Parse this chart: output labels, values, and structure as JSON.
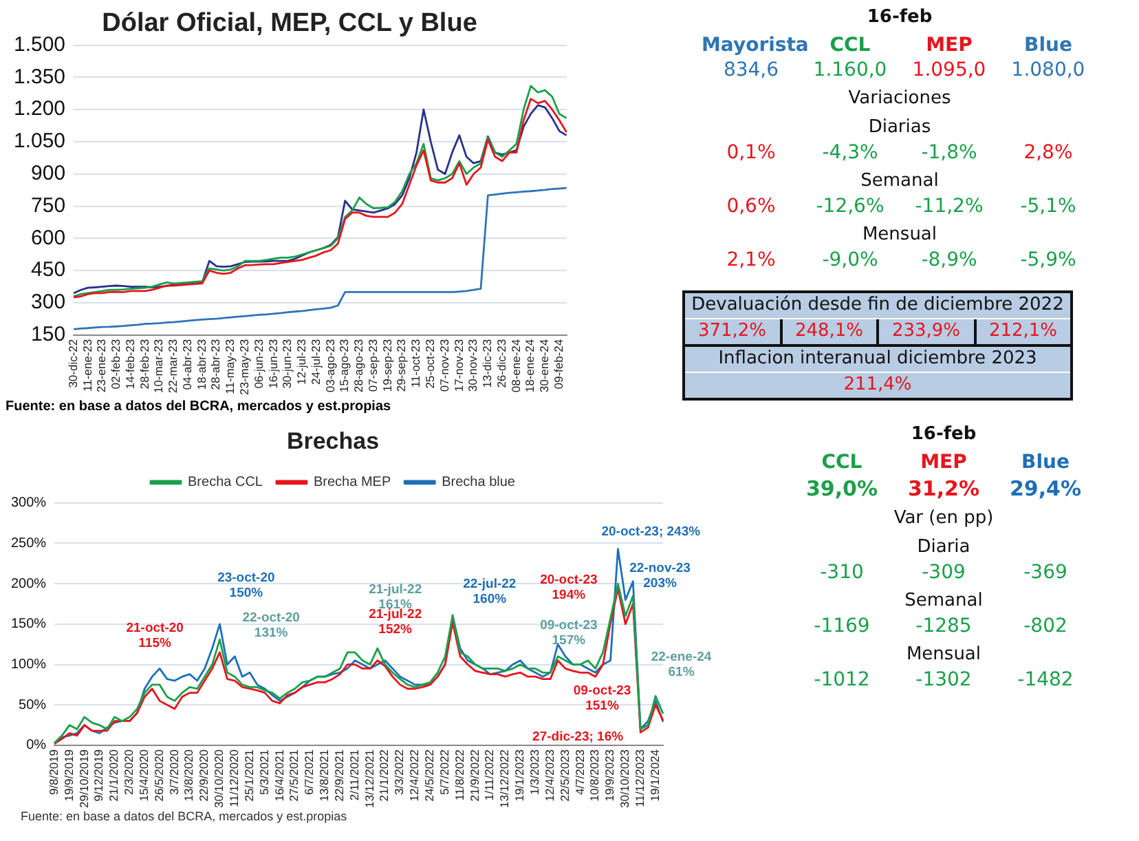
{
  "chart_data": [
    {
      "type": "line",
      "title": "Dólar Oficial, MEP, CCL y Blue",
      "categories": [
        "30-dic-22",
        null,
        "11-ene-23",
        null,
        "23-ene-23",
        null,
        "02-feb-23",
        null,
        "14-feb-23",
        null,
        "28-feb-23",
        null,
        "10-mar-23",
        null,
        "22-mar-23",
        null,
        "04-abr-23",
        null,
        "18-abr-23",
        null,
        "28-abr-23",
        null,
        "11-may-23",
        null,
        "23-may-23",
        null,
        "06-jun-23",
        null,
        "16-jun-23",
        null,
        "30-jun-23",
        null,
        "12-jul-23",
        null,
        "24-jul-23",
        null,
        "03-ago-23",
        null,
        "15-ago-23",
        null,
        "28-ago-23",
        null,
        "07-sep-23",
        null,
        "19-sep-23",
        null,
        "29-sep-23",
        null,
        "11-oct-23",
        null,
        "25-oct-23",
        null,
        "07-nov-23",
        null,
        "17-nov-23",
        null,
        "30-nov-23",
        null,
        "13-dic-23",
        null,
        "26-dic-23",
        null,
        "08-ene-24",
        null,
        "18-ene-24",
        null,
        "30-ene-24",
        null,
        "09-feb-24",
        null
      ],
      "series": [
        {
          "color": "#2e75b6",
          "values": [
            177,
            180,
            182,
            185,
            187,
            188,
            190,
            192,
            195,
            198,
            202,
            203,
            205,
            208,
            210,
            213,
            216,
            219,
            222,
            224,
            226,
            229,
            232,
            235,
            238,
            241,
            244,
            246,
            249,
            252,
            256,
            259,
            262,
            266,
            270,
            273,
            277,
            287,
            350,
            350,
            350,
            350,
            350,
            350,
            350,
            350,
            350,
            350,
            350,
            350,
            350,
            350,
            350,
            350,
            352,
            355,
            360,
            365,
            800,
            804,
            808,
            812,
            815,
            818,
            820,
            823,
            826,
            830,
            832,
            835
          ]
        },
        {
          "color": "#e8141c",
          "values": [
            325,
            330,
            340,
            345,
            345,
            350,
            350,
            350,
            355,
            355,
            355,
            360,
            370,
            380,
            380,
            382,
            385,
            388,
            390,
            450,
            440,
            435,
            440,
            460,
            475,
            476,
            478,
            480,
            480,
            485,
            490,
            495,
            500,
            510,
            520,
            535,
            545,
            575,
            690,
            720,
            720,
            705,
            700,
            700,
            700,
            720,
            760,
            850,
            940,
            1010,
            870,
            860,
            860,
            880,
            950,
            850,
            900,
            930,
            1060,
            980,
            960,
            1000,
            1000,
            1150,
            1250,
            1230,
            1240,
            1200,
            1150,
            1095
          ]
        },
        {
          "color": "#1aa04a",
          "values": [
            330,
            340,
            345,
            350,
            355,
            360,
            360,
            362,
            365,
            368,
            370,
            375,
            385,
            395,
            390,
            392,
            395,
            398,
            400,
            460,
            455,
            450,
            455,
            470,
            495,
            495,
            495,
            500,
            505,
            510,
            510,
            515,
            525,
            535,
            545,
            555,
            565,
            600,
            700,
            730,
            790,
            760,
            740,
            742,
            745,
            770,
            820,
            900,
            950,
            1040,
            880,
            870,
            880,
            900,
            960,
            900,
            930,
            950,
            1070,
            1000,
            980,
            1010,
            1040,
            1200,
            1310,
            1280,
            1290,
            1260,
            1180,
            1160
          ]
        },
        {
          "color": "#27318b",
          "values": [
            345,
            360,
            370,
            372,
            375,
            378,
            380,
            378,
            375,
            375,
            375,
            372,
            375,
            378,
            385,
            390,
            392,
            390,
            395,
            495,
            470,
            468,
            470,
            480,
            490,
            492,
            492,
            493,
            495,
            495,
            495,
            505,
            520,
            535,
            545,
            555,
            570,
            605,
            775,
            735,
            730,
            725,
            720,
            730,
            740,
            760,
            800,
            880,
            1000,
            1200,
            1050,
            920,
            900,
            1000,
            1080,
            980,
            950,
            960,
            1075,
            1000,
            990,
            1000,
            1010,
            1120,
            1180,
            1220,
            1210,
            1160,
            1100,
            1080
          ]
        }
      ],
      "ylim": [
        150,
        1500
      ],
      "yticks": [
        150,
        300,
        450,
        600,
        750,
        900,
        {
          "value": 1050,
          "label": "1.050"
        },
        {
          "value": 1200,
          "label": "1.200"
        },
        {
          "value": 1350,
          "label": "1.350"
        },
        {
          "value": 1500,
          "label": "1.500"
        }
      ],
      "grid": "y",
      "annotations": [
        "Fuente: en base a datos del BCRA, mercados y est.propias"
      ]
    },
    {
      "type": "other",
      "title": "16-feb",
      "categories": [
        "Mayorista",
        "CCL",
        "MEP",
        "Blue"
      ],
      "colors": [
        "#2e75b6",
        "#1aa04a",
        "#e8141c",
        "#2e75b6"
      ],
      "annotations": [
        "834,6",
        "1.160,0",
        "1.095,0",
        "1.080,0",
        "Variaciones",
        "Diarias",
        "0,1%",
        "-4,3%",
        "-1,8%",
        "2,8%",
        "Semanal",
        "0,6%",
        "-12,6%",
        "-11,2%",
        "-5,1%",
        "Mensual",
        "2,1%",
        "-9,0%",
        "-8,9%",
        "-5,9%",
        "Devaluación desde fin de diciembre 2022",
        "371,2%",
        "248,1%",
        "233,9%",
        "212,1%",
        "Inflacion interanual diciembre 2023",
        "211,4%"
      ]
    },
    {
      "type": "line",
      "title": "Brechas",
      "categories": [
        "9/8/2019",
        null,
        "19/9/2019",
        null,
        "29/10/2019",
        null,
        "9/12/2019",
        null,
        "21/1/2020",
        null,
        "2/3/2020",
        null,
        "15/4/2020",
        null,
        "26/5/2020",
        null,
        "3/7/2020",
        null,
        "13/8/2020",
        null,
        "22/9/2020",
        null,
        "30/10/2020",
        null,
        "11/12/2020",
        null,
        "25/1/2021",
        null,
        "5/3/2021",
        null,
        "16/4/2021",
        null,
        "27/5/2021",
        null,
        "6/7/2021",
        null,
        "13/8/2021",
        null,
        "22/9/2021",
        null,
        "2/11/2021",
        null,
        "13/12/2021",
        null,
        "21/1/2022",
        null,
        "3/3/2022",
        null,
        "12/4/2022",
        null,
        "24/5/2022",
        null,
        "5/7/2022",
        null,
        "11/8/2022",
        null,
        "21/9/2022",
        null,
        "1/11/2022",
        null,
        "13/12/2022",
        null,
        "19/1/2023",
        null,
        "1/3/2023",
        null,
        "12/4/2023",
        null,
        "22/5/2023",
        null,
        "4/7/2023",
        null,
        "10/8/2023",
        null,
        "19/9/2023",
        null,
        "30/10/2023",
        null,
        "11/12/2023",
        null,
        "19/1/2024",
        null
      ],
      "series": [
        {
          "name": "Brecha CCL",
          "color": "#1aa04a",
          "values": [
            3,
            12,
            25,
            20,
            35,
            28,
            25,
            20,
            35,
            30,
            35,
            45,
            65,
            75,
            75,
            60,
            55,
            65,
            72,
            70,
            85,
            100,
            131,
            90,
            85,
            75,
            72,
            72,
            68,
            65,
            58,
            65,
            70,
            78,
            80,
            85,
            85,
            90,
            95,
            115,
            115,
            105,
            100,
            120,
            100,
            90,
            82,
            75,
            72,
            75,
            78,
            90,
            110,
            161,
            115,
            110,
            100,
            95,
            95,
            95,
            92,
            95,
            100,
            95,
            95,
            90,
            90,
            110,
            105,
            100,
            100,
            105,
            95,
            115,
            157,
            200,
            160,
            185,
            20,
            25,
            61,
            39
          ]
        },
        {
          "name": "Brecha MEP",
          "color": "#e8141c",
          "values": [
            2,
            8,
            15,
            12,
            25,
            18,
            18,
            18,
            30,
            30,
            30,
            40,
            60,
            70,
            55,
            50,
            45,
            60,
            65,
            65,
            80,
            95,
            115,
            82,
            80,
            72,
            70,
            68,
            65,
            55,
            52,
            62,
            65,
            72,
            75,
            78,
            78,
            82,
            88,
            100,
            100,
            95,
            95,
            105,
            98,
            85,
            75,
            70,
            70,
            72,
            75,
            85,
            100,
            152,
            110,
            100,
            92,
            90,
            88,
            88,
            85,
            88,
            90,
            85,
            85,
            82,
            82,
            105,
            95,
            92,
            90,
            90,
            85,
            100,
            151,
            194,
            150,
            175,
            16,
            22,
            50,
            31
          ]
        },
        {
          "name": "Brecha blue",
          "color": "#1f6fb8",
          "values": [
            2,
            10,
            12,
            15,
            25,
            18,
            15,
            22,
            28,
            30,
            30,
            40,
            70,
            85,
            95,
            82,
            80,
            85,
            88,
            80,
            95,
            120,
            150,
            100,
            110,
            85,
            90,
            75,
            70,
            62,
            55,
            60,
            65,
            72,
            80,
            85,
            85,
            88,
            90,
            95,
            105,
            100,
            95,
            100,
            105,
            95,
            85,
            80,
            75,
            75,
            75,
            85,
            100,
            160,
            120,
            105,
            100,
            95,
            88,
            90,
            92,
            100,
            105,
            95,
            90,
            85,
            90,
            125,
            110,
            100,
            100,
            95,
            90,
            100,
            105,
            243,
            180,
            203,
            20,
            30,
            55,
            29
          ]
        }
      ],
      "ylim": [
        0,
        300
      ],
      "yticks": [
        {
          "value": 0,
          "label": "0%"
        },
        {
          "value": 50,
          "label": "50%"
        },
        {
          "value": 100,
          "label": "100%"
        },
        {
          "value": 150,
          "label": "150%"
        },
        {
          "value": 200,
          "label": "200%"
        },
        {
          "value": 250,
          "label": "250%"
        },
        {
          "value": 300,
          "label": "300%"
        }
      ],
      "grid": "y",
      "legend": "top",
      "annotations": [
        "21-oct-20\n115%",
        "23-oct-20\n150%",
        "22-oct-20\n131%",
        "21-jul-22\n161%",
        "21-jul-22\n152%",
        "22-jul-22\n160%",
        "20-oct-23\n194%",
        "09-oct-23\n157%",
        "09-oct-23\n151%",
        "20-oct-23; 243%",
        "22-nov-23\n203%",
        "22-ene-24\n61%",
        "27-dic-23; 16%",
        "Fuente: en base a datos del BCRA, mercados y est.propias"
      ]
    },
    {
      "type": "other",
      "title": "16-feb",
      "categories": [
        "CCL",
        "MEP",
        "Blue"
      ],
      "colors": [
        "#1aa04a",
        "#e8141c",
        "#1f6fb8"
      ],
      "annotations": [
        "39,0%",
        "31,2%",
        "29,4%",
        "Var (en pp)",
        "Diaria",
        "-310",
        "-309",
        "-369",
        "Semanal",
        "-1169",
        "-1285",
        "-802",
        "Mensual",
        "-1012",
        "-1302",
        "-1482"
      ]
    }
  ]
}
